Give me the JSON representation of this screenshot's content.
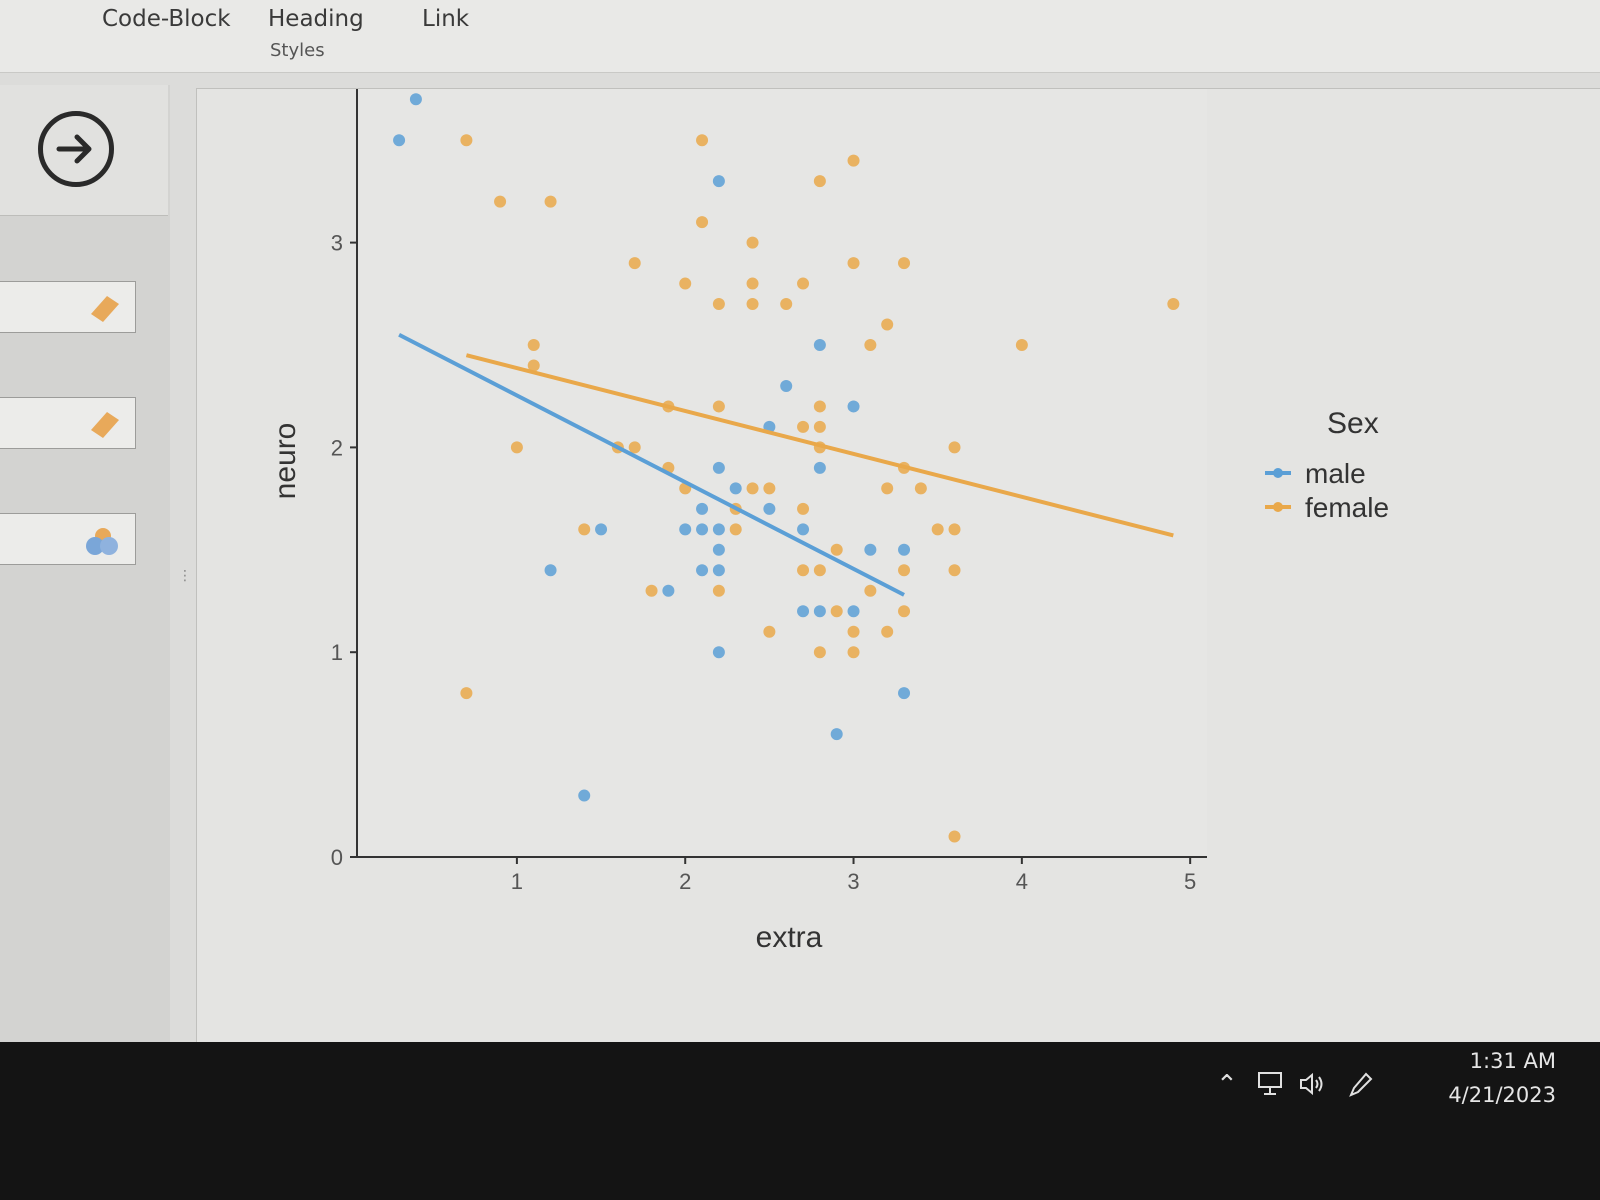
{
  "ribbon": {
    "items": [
      "Code-Block",
      "Heading",
      "Link"
    ],
    "group_label": "Styles"
  },
  "sidebar": {
    "arrow_icon": "arrow-right-circle-icon",
    "buttons": [
      "eraser-icon",
      "eraser-icon",
      "shapes-icon"
    ]
  },
  "taskbar": {
    "time": "1:31 AM",
    "date": "4/21/2023",
    "tray_icons": [
      "chevron-up-icon",
      "network-icon",
      "volume-icon",
      "pen-icon"
    ]
  },
  "chart_data": {
    "type": "scatter",
    "xlabel": "extra",
    "ylabel": "neuro",
    "xlim": [
      0.05,
      5.1
    ],
    "ylim": [
      0,
      3.75
    ],
    "xticks": [
      1,
      2,
      3,
      4,
      5
    ],
    "yticks": [
      0,
      1,
      2,
      3
    ],
    "grid": false,
    "legend": {
      "title": "Sex",
      "placement": "right"
    },
    "series": [
      {
        "name": "male",
        "color": "#5b9fd6",
        "points": [
          [
            0.3,
            3.5
          ],
          [
            0.4,
            3.7
          ],
          [
            2.2,
            3.3
          ],
          [
            1.2,
            1.4
          ],
          [
            1.4,
            0.3
          ],
          [
            1.5,
            1.6
          ],
          [
            1.9,
            1.3
          ],
          [
            2.0,
            1.6
          ],
          [
            2.1,
            1.6
          ],
          [
            2.2,
            1.6
          ],
          [
            2.1,
            1.7
          ],
          [
            2.1,
            1.4
          ],
          [
            2.2,
            1.4
          ],
          [
            2.2,
            1.5
          ],
          [
            2.2,
            1.9
          ],
          [
            2.3,
            1.8
          ],
          [
            2.2,
            1.0
          ],
          [
            2.5,
            2.1
          ],
          [
            2.5,
            1.7
          ],
          [
            2.6,
            2.3
          ],
          [
            2.7,
            1.6
          ],
          [
            2.7,
            1.2
          ],
          [
            2.8,
            1.2
          ],
          [
            2.8,
            2.5
          ],
          [
            2.8,
            1.9
          ],
          [
            2.9,
            0.6
          ],
          [
            3.0,
            2.2
          ],
          [
            3.0,
            1.2
          ],
          [
            3.1,
            1.5
          ],
          [
            3.3,
            1.5
          ],
          [
            3.3,
            0.8
          ]
        ],
        "trend": [
          [
            0.3,
            2.55
          ],
          [
            3.3,
            1.28
          ]
        ]
      },
      {
        "name": "female",
        "color": "#e9a84a",
        "points": [
          [
            0.7,
            3.5
          ],
          [
            0.9,
            3.2
          ],
          [
            1.2,
            3.2
          ],
          [
            2.1,
            3.5
          ],
          [
            2.1,
            3.1
          ],
          [
            2.4,
            3.0
          ],
          [
            1.7,
            2.9
          ],
          [
            2.0,
            2.8
          ],
          [
            2.2,
            2.7
          ],
          [
            2.4,
            2.8
          ],
          [
            2.4,
            2.7
          ],
          [
            2.6,
            2.7
          ],
          [
            2.7,
            2.8
          ],
          [
            2.8,
            3.3
          ],
          [
            3.0,
            3.4
          ],
          [
            3.0,
            2.9
          ],
          [
            3.3,
            2.9
          ],
          [
            3.2,
            2.6
          ],
          [
            3.1,
            2.5
          ],
          [
            4.0,
            2.5
          ],
          [
            4.9,
            2.7
          ],
          [
            1.1,
            2.5
          ],
          [
            1.1,
            2.4
          ],
          [
            1.0,
            2.0
          ],
          [
            1.6,
            2.0
          ],
          [
            1.7,
            2.0
          ],
          [
            1.9,
            2.2
          ],
          [
            2.2,
            2.2
          ],
          [
            1.9,
            1.9
          ],
          [
            2.0,
            1.8
          ],
          [
            2.4,
            1.8
          ],
          [
            2.3,
            1.7
          ],
          [
            2.3,
            1.6
          ],
          [
            2.5,
            1.8
          ],
          [
            2.7,
            1.7
          ],
          [
            2.7,
            2.1
          ],
          [
            2.8,
            2.1
          ],
          [
            2.8,
            2.2
          ],
          [
            2.8,
            2.0
          ],
          [
            2.9,
            1.5
          ],
          [
            2.7,
            1.4
          ],
          [
            2.8,
            1.4
          ],
          [
            1.4,
            1.6
          ],
          [
            1.8,
            1.3
          ],
          [
            2.2,
            1.3
          ],
          [
            2.5,
            1.1
          ],
          [
            2.8,
            1.0
          ],
          [
            2.9,
            1.2
          ],
          [
            3.0,
            1.1
          ],
          [
            3.0,
            1.0
          ],
          [
            3.1,
            1.3
          ],
          [
            3.2,
            1.1
          ],
          [
            3.2,
            1.8
          ],
          [
            3.3,
            1.9
          ],
          [
            3.3,
            1.4
          ],
          [
            3.3,
            1.2
          ],
          [
            3.4,
            1.8
          ],
          [
            3.5,
            1.6
          ],
          [
            3.6,
            1.6
          ],
          [
            3.6,
            2.0
          ],
          [
            3.6,
            1.4
          ],
          [
            3.6,
            0.1
          ],
          [
            0.7,
            0.8
          ]
        ],
        "trend": [
          [
            0.7,
            2.45
          ],
          [
            4.9,
            1.57
          ]
        ]
      }
    ]
  }
}
